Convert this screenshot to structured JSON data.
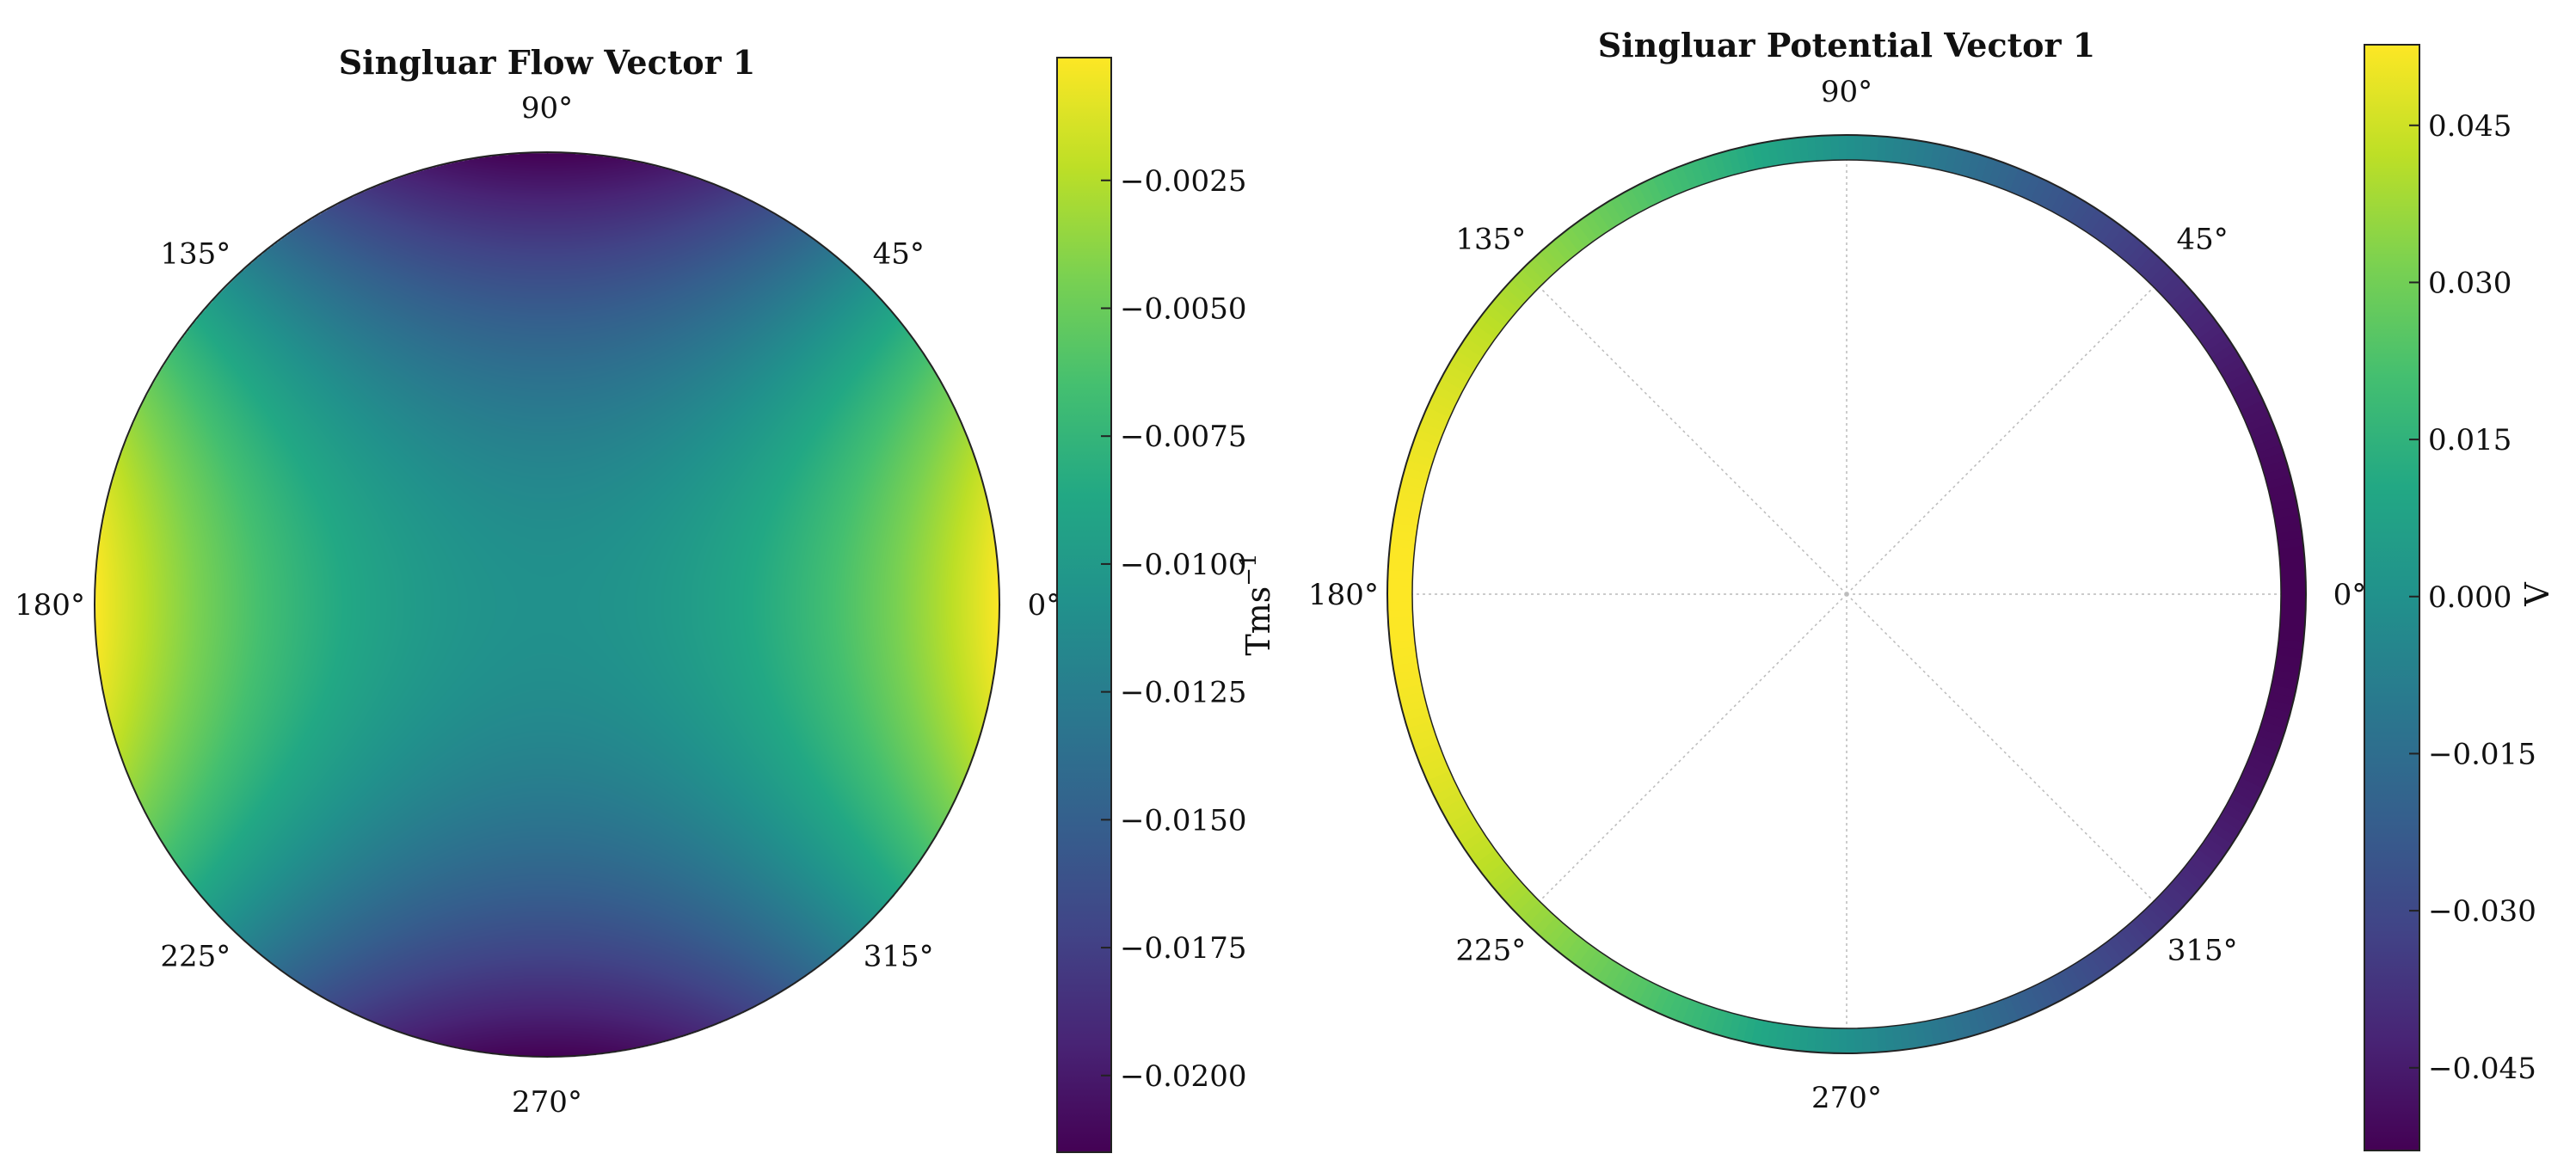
{
  "colormap": {
    "name": "viridis",
    "stops": [
      "#440154",
      "#482475",
      "#414487",
      "#355f8d",
      "#2a788e",
      "#21918c",
      "#22a884",
      "#44bf70",
      "#7ad151",
      "#bddf26",
      "#fde725"
    ]
  },
  "chart_data": [
    {
      "type": "heatmap",
      "projection": "polar",
      "title": "Singluar Flow Vector 1",
      "angle_ticks": [
        "0°",
        "45°",
        "90°",
        "135°",
        "180°",
        "225°",
        "270°",
        "315°"
      ],
      "field": {
        "pattern": "center + amplitude * r^2 * cos(2*theta)",
        "center": -0.0108,
        "amplitude": 0.0107
      },
      "colorbar": {
        "label": "Tms",
        "label_exponent": "−1",
        "range": [
          -0.0215,
          -0.0001
        ],
        "ticks": [
          -0.0025,
          -0.005,
          -0.0075,
          -0.01,
          -0.0125,
          -0.015,
          -0.0175,
          -0.02
        ],
        "tick_labels": [
          "−0.0025",
          "−0.0050",
          "−0.0075",
          "−0.0100",
          "−0.0125",
          "−0.0150",
          "−0.0175",
          "−0.0200"
        ]
      }
    },
    {
      "type": "heatmap",
      "projection": "polar-ring",
      "title": "Singluar Potential Vector 1",
      "angle_ticks": [
        "0°",
        "45°",
        "90°",
        "135°",
        "180°",
        "225°",
        "270°",
        "315°"
      ],
      "grid": true,
      "field": {
        "pattern": "-amplitude * cos(theta) on boundary",
        "amplitude": 0.0527
      },
      "colorbar": {
        "label": "V",
        "range": [
          -0.0529,
          0.0527
        ],
        "ticks": [
          0.045,
          0.03,
          0.015,
          0.0,
          -0.015,
          -0.03,
          -0.045
        ],
        "tick_labels": [
          "0.045",
          "0.030",
          "0.015",
          "0.000",
          "−0.015",
          "−0.030",
          "−0.045"
        ]
      }
    }
  ]
}
